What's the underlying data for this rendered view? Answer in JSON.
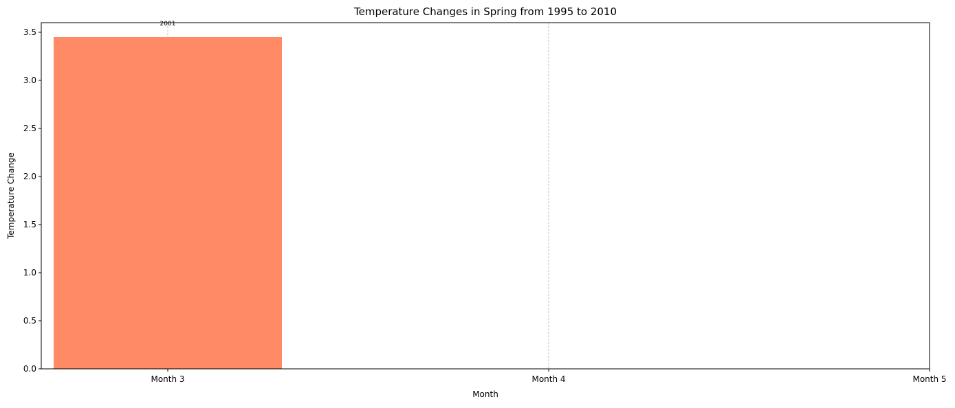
{
  "chart_data": {
    "type": "bar",
    "title": "Temperature Changes in Spring from 1995 to 2010",
    "xlabel": "Month",
    "ylabel": "Temperature Change",
    "categories": [
      "Month 3",
      "Month 4",
      "Month 5"
    ],
    "series": [
      {
        "values": [
          3.45,
          null,
          null
        ],
        "data_labels": [
          "2001",
          "",
          ""
        ]
      }
    ],
    "ylim": [
      0,
      3.6
    ],
    "yticks": [
      0.0,
      0.5,
      1.0,
      1.5,
      2.0,
      2.5,
      3.0,
      3.5
    ],
    "ytick_labels": [
      "0.0",
      "0.5",
      "1.0",
      "1.5",
      "2.0",
      "2.5",
      "3.0",
      "3.5"
    ],
    "grid": "vertical dashed",
    "colors": {
      "bar": "#ff8a65",
      "grid": "#b0b0b0",
      "axis": "#000000"
    }
  }
}
